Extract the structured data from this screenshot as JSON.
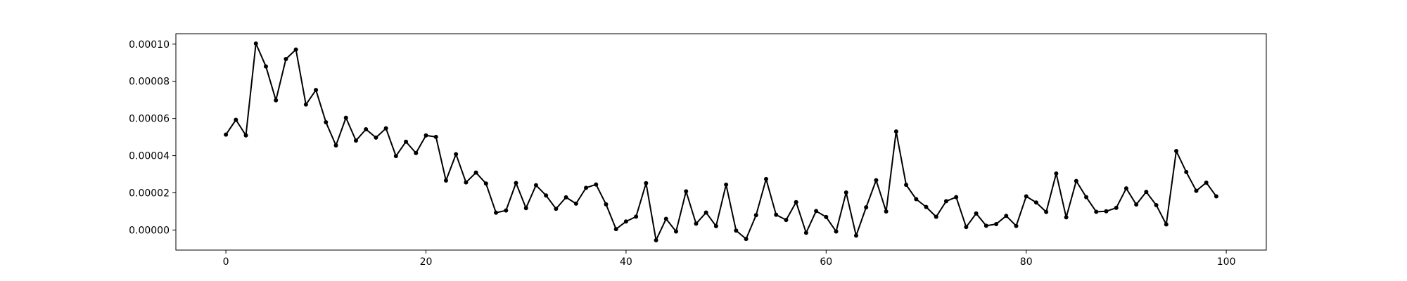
{
  "chart_data": {
    "type": "line",
    "title": "",
    "xlabel": "",
    "ylabel": "",
    "xlim": [
      -5,
      104
    ],
    "ylim": [
      -1.08e-05,
      0.0001056
    ],
    "grid": false,
    "legend": "none",
    "line_color": "#000000",
    "marker": "dot",
    "x_ticks": [
      {
        "value": 0,
        "label": "0"
      },
      {
        "value": 20,
        "label": "20"
      },
      {
        "value": 40,
        "label": "40"
      },
      {
        "value": 60,
        "label": "60"
      },
      {
        "value": 80,
        "label": "80"
      },
      {
        "value": 100,
        "label": "100"
      }
    ],
    "y_ticks": [
      {
        "value": 0.0,
        "label": "0.00000"
      },
      {
        "value": 2e-05,
        "label": "0.00002"
      },
      {
        "value": 4e-05,
        "label": "0.00004"
      },
      {
        "value": 6e-05,
        "label": "0.00006"
      },
      {
        "value": 8e-05,
        "label": "0.00008"
      },
      {
        "value": 0.0001,
        "label": "0.00010"
      }
    ],
    "series": [
      {
        "values": [
          5.13e-05,
          5.93e-05,
          5.09e-05,
          0.0001003,
          8.8e-05,
          6.98e-05,
          9.2e-05,
          9.71e-05,
          6.75e-05,
          7.53e-05,
          5.8e-05,
          4.55e-05,
          6.04e-05,
          4.81e-05,
          5.42e-05,
          4.97e-05,
          5.47e-05,
          3.98e-05,
          4.75e-05,
          4.14e-05,
          5.09e-05,
          5.01e-05,
          2.66e-05,
          4.08e-05,
          2.56e-05,
          3.09e-05,
          2.5e-05,
          9.3e-06,
          1.05e-05,
          2.53e-05,
          1.18e-05,
          2.41e-05,
          1.86e-05,
          1.14e-05,
          1.76e-05,
          1.42e-05,
          2.27e-05,
          2.45e-05,
          1.38e-05,
          5e-07,
          4.6e-06,
          7.2e-06,
          2.52e-05,
          -5.5e-06,
          6e-06,
          -8e-07,
          2.08e-05,
          3.4e-06,
          9.4e-06,
          2.1e-06,
          2.44e-05,
          -3e-07,
          -4.8e-06,
          8e-06,
          2.74e-05,
          8.2e-06,
          5.4e-06,
          1.5e-05,
          -1.5e-06,
          1.02e-05,
          7e-06,
          -8e-07,
          2.02e-05,
          -3e-06,
          1.22e-05,
          2.68e-05,
          1e-05,
          5.3e-05,
          2.43e-05,
          1.66e-05,
          1.24e-05,
          7.1e-06,
          1.55e-05,
          1.77e-05,
          1.6e-06,
          8.9e-06,
          2.3e-06,
          3.2e-06,
          7.6e-06,
          2.2e-06,
          1.81e-05,
          1.48e-05,
          9.7e-06,
          3.04e-05,
          6.8e-06,
          2.64e-05,
          1.77e-05,
          9.8e-06,
          1.01e-05,
          1.19e-05,
          2.24e-05,
          1.37e-05,
          2.05e-05,
          1.34e-05,
          3e-06,
          4.25e-05,
          3.12e-05,
          2.11e-05,
          2.55e-05,
          1.81e-05
        ]
      }
    ]
  }
}
